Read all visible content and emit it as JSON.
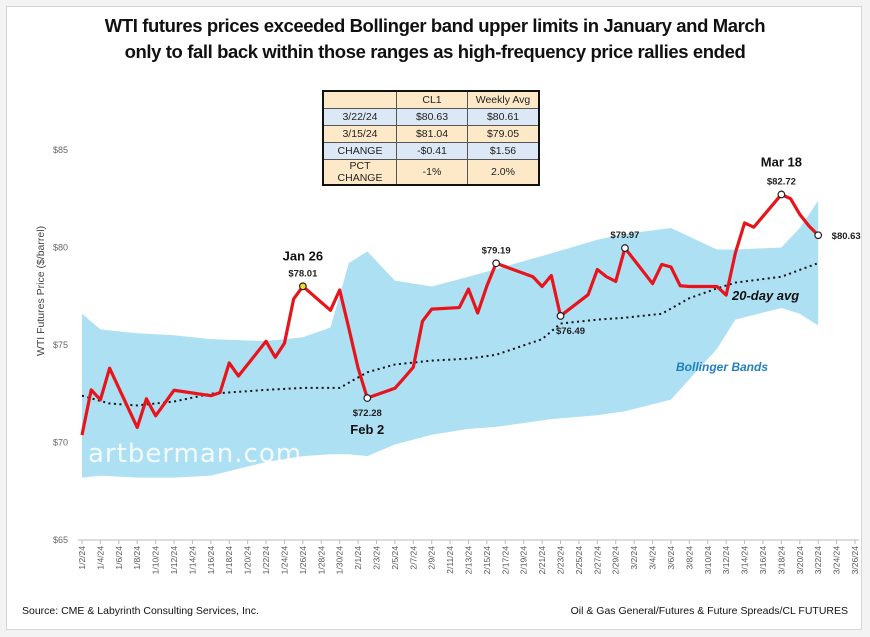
{
  "title": {
    "line1": "WTI futures prices exceeded Bollinger band upper limits in January and March",
    "line2": "only to fall back within those ranges as high-frequency price rallies ended"
  },
  "table": {
    "headers": [
      "",
      "CL1",
      "Weekly Avg"
    ],
    "rows": [
      [
        "3/22/24",
        "$80.63",
        "$80.61"
      ],
      [
        "3/15/24",
        "$81.04",
        "$79.05"
      ],
      [
        "CHANGE",
        "-$0.41",
        "$1.56"
      ],
      [
        "PCT CHANGE",
        "-1%",
        "2.0%"
      ]
    ]
  },
  "footer": {
    "source": "Source: CME & Labyrinth Consulting Services, Inc.",
    "path": "Oil & Gas General/Futures & Future Spreads/CL FUTURES"
  },
  "watermark": "artberman.com",
  "colors": {
    "price": "#e8141b",
    "band": "#aee0f4",
    "ma": "#111111",
    "band_label": "#1f7fc0",
    "table_tan": "#fde9c8",
    "table_blue": "#dce8f5"
  },
  "chart_data": {
    "type": "line",
    "title": "WTI futures prices exceeded Bollinger band upper limits in January and March only to fall back within those ranges as high-frequency price rallies ended",
    "ylabel": "WTI Futures Price ($/barrel)",
    "xlabel": "",
    "ylim": [
      65,
      85
    ],
    "yticks": [
      "$65",
      "$70",
      "$75",
      "$80",
      "$85"
    ],
    "yticks_values": [
      65,
      70,
      75,
      80,
      85
    ],
    "xlim": [
      "2024-01-02",
      "2024-03-26"
    ],
    "xticks": [
      "1/2/24",
      "1/4/24",
      "1/6/24",
      "1/8/24",
      "1/10/24",
      "1/12/24",
      "1/14/24",
      "1/16/24",
      "1/18/24",
      "1/20/24",
      "1/22/24",
      "1/24/24",
      "1/26/24",
      "1/28/24",
      "1/30/24",
      "2/1/24",
      "2/3/24",
      "2/5/24",
      "2/7/24",
      "2/9/24",
      "2/11/24",
      "2/13/24",
      "2/15/24",
      "2/17/24",
      "2/19/24",
      "2/21/24",
      "2/23/24",
      "2/25/24",
      "2/27/24",
      "2/29/24",
      "3/2/24",
      "3/4/24",
      "3/6/24",
      "3/8/24",
      "3/10/24",
      "3/12/24",
      "3/14/24",
      "3/16/24",
      "3/18/24",
      "3/20/24",
      "3/22/24",
      "3/24/24",
      "3/26/24"
    ],
    "grid": false,
    "series": [
      {
        "name": "CL1",
        "x": [
          "2024-01-02",
          "2024-01-03",
          "2024-01-04",
          "2024-01-05",
          "2024-01-08",
          "2024-01-09",
          "2024-01-10",
          "2024-01-11",
          "2024-01-12",
          "2024-01-16",
          "2024-01-17",
          "2024-01-18",
          "2024-01-19",
          "2024-01-22",
          "2024-01-23",
          "2024-01-24",
          "2024-01-25",
          "2024-01-26",
          "2024-01-29",
          "2024-01-30",
          "2024-01-31",
          "2024-02-01",
          "2024-02-02",
          "2024-02-05",
          "2024-02-06",
          "2024-02-07",
          "2024-02-08",
          "2024-02-09",
          "2024-02-12",
          "2024-02-13",
          "2024-02-14",
          "2024-02-15",
          "2024-02-16",
          "2024-02-20",
          "2024-02-21",
          "2024-02-22",
          "2024-02-23",
          "2024-02-26",
          "2024-02-27",
          "2024-02-28",
          "2024-02-29",
          "2024-03-01",
          "2024-03-04",
          "2024-03-05",
          "2024-03-06",
          "2024-03-07",
          "2024-03-08",
          "2024-03-11",
          "2024-03-12",
          "2024-03-13",
          "2024-03-14",
          "2024-03-15",
          "2024-03-18",
          "2024-03-19",
          "2024-03-20",
          "2024-03-21",
          "2024-03-22"
        ],
        "y": [
          70.38,
          72.7,
          72.19,
          73.81,
          70.77,
          72.24,
          71.37,
          72.02,
          72.68,
          72.4,
          72.56,
          74.08,
          73.41,
          75.19,
          74.37,
          75.09,
          77.36,
          78.01,
          76.78,
          77.82,
          75.85,
          73.82,
          72.28,
          72.78,
          73.31,
          73.86,
          76.22,
          76.84,
          76.92,
          77.87,
          76.64,
          78.03,
          79.19,
          78.5,
          78.0,
          78.56,
          76.49,
          77.58,
          78.87,
          78.5,
          78.26,
          79.97,
          78.15,
          79.13,
          79.0,
          78.04,
          78.0,
          78.0,
          77.56,
          79.72,
          81.26,
          81.04,
          82.72,
          82.5,
          81.7,
          81.1,
          80.63
        ]
      },
      {
        "name": "20-day avg",
        "x": [
          "2024-01-02",
          "2024-01-05",
          "2024-01-08",
          "2024-01-12",
          "2024-01-16",
          "2024-01-22",
          "2024-01-26",
          "2024-01-30",
          "2024-02-02",
          "2024-02-05",
          "2024-02-09",
          "2024-02-13",
          "2024-02-16",
          "2024-02-21",
          "2024-02-23",
          "2024-02-27",
          "2024-03-01",
          "2024-03-05",
          "2024-03-08",
          "2024-03-11",
          "2024-03-13",
          "2024-03-18",
          "2024-03-22"
        ],
        "y": [
          72.4,
          72.0,
          71.9,
          72.1,
          72.5,
          72.7,
          72.8,
          72.8,
          73.6,
          74.0,
          74.2,
          74.3,
          74.5,
          75.3,
          76.1,
          76.3,
          76.4,
          76.6,
          77.4,
          77.9,
          78.2,
          78.5,
          79.2
        ]
      },
      {
        "name": "Bollinger Bands",
        "x": [
          "2024-01-02",
          "2024-01-04",
          "2024-01-08",
          "2024-01-12",
          "2024-01-16",
          "2024-01-22",
          "2024-01-26",
          "2024-01-29",
          "2024-01-31",
          "2024-02-02",
          "2024-02-05",
          "2024-02-09",
          "2024-02-13",
          "2024-02-16",
          "2024-02-22",
          "2024-02-27",
          "2024-03-01",
          "2024-03-06",
          "2024-03-11",
          "2024-03-13",
          "2024-03-18",
          "2024-03-20",
          "2024-03-22"
        ],
        "upper": [
          76.6,
          75.8,
          75.6,
          75.5,
          75.3,
          75.2,
          75.4,
          75.9,
          79.2,
          79.8,
          78.3,
          78.0,
          78.5,
          78.9,
          79.7,
          80.4,
          80.7,
          81.0,
          79.9,
          79.9,
          80.0,
          81.0,
          82.4
        ],
        "lower": [
          68.2,
          68.3,
          68.2,
          68.2,
          68.3,
          69.0,
          69.3,
          69.4,
          69.4,
          69.3,
          69.9,
          70.4,
          70.7,
          70.8,
          71.2,
          71.4,
          71.6,
          72.2,
          74.8,
          76.3,
          76.9,
          76.6,
          76.0
        ]
      }
    ],
    "annotations": [
      {
        "date": "2024-01-26",
        "value": 78.01,
        "label": "$78.01",
        "title": "Jan 26"
      },
      {
        "date": "2024-02-02",
        "value": 72.28,
        "label": "$72.28",
        "title": "Feb 2"
      },
      {
        "date": "2024-02-16",
        "value": 79.19,
        "label": "$79.19"
      },
      {
        "date": "2024-02-23",
        "value": 76.49,
        "label": "$76.49"
      },
      {
        "date": "2024-03-01",
        "value": 79.97,
        "label": "$79.97"
      },
      {
        "date": "2024-03-18",
        "value": 82.72,
        "label": "$82.72",
        "title": "Mar 18"
      },
      {
        "date": "2024-03-22",
        "value": 80.63,
        "label": "$80.63"
      }
    ],
    "text_labels": {
      "ma": "20-day avg",
      "bands": "Bollinger Bands"
    }
  }
}
